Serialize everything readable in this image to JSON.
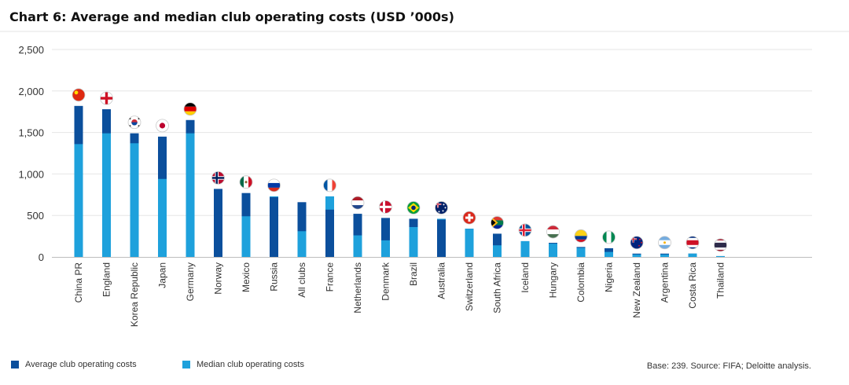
{
  "chart_data": {
    "type": "bar",
    "title": "Chart 6: Average and median club operating costs (USD ’000s)",
    "xlabel": "",
    "ylabel": "",
    "ylim": [
      0,
      2500
    ],
    "yticks": [
      0,
      500,
      1000,
      1500,
      2000,
      2500
    ],
    "ytick_labels": [
      "0",
      "500",
      "1,000",
      "1,500",
      "2,000",
      "2,500"
    ],
    "grid": true,
    "legend": "bottom-left",
    "categories": [
      "China PR",
      "England",
      "Korea Republic",
      "Japan",
      "Germany",
      "Norway",
      "Mexico",
      "Russia",
      "All clubs",
      "France",
      "Netherlands",
      "Denmark",
      "Brazil",
      "Australia",
      "Switzerland",
      "South Africa",
      "Iceland",
      "Hungary",
      "Colombia",
      "Nigeria",
      "New Zealand",
      "Argentina",
      "Costa Rica",
      "Thailand"
    ],
    "flag_icons": [
      "china-flag-icon",
      "england-flag-icon",
      "korea-republic-flag-icon",
      "japan-flag-icon",
      "germany-flag-icon",
      "norway-flag-icon",
      "mexico-flag-icon",
      "russia-flag-icon",
      null,
      "france-flag-icon",
      "netherlands-flag-icon",
      "denmark-flag-icon",
      "brazil-flag-icon",
      "australia-flag-icon",
      "switzerland-flag-icon",
      "south-africa-flag-icon",
      "iceland-flag-icon",
      "hungary-flag-icon",
      "colombia-flag-icon",
      "nigeria-flag-icon",
      "new-zealand-flag-icon",
      "argentina-flag-icon",
      "costa-rica-flag-icon",
      "thailand-flag-icon"
    ],
    "series": [
      {
        "name": "Average club operating costs",
        "color": "#0b4f9c",
        "values": [
          1820,
          1780,
          1490,
          1450,
          1650,
          820,
          770,
          720,
          660,
          570,
          520,
          470,
          460,
          450,
          340,
          280,
          190,
          170,
          120,
          105,
          40,
          40,
          40,
          10
        ]
      },
      {
        "name": "Median club operating costs",
        "color": "#1ea1dc",
        "values": [
          1360,
          1490,
          1370,
          940,
          1490,
          0,
          490,
          730,
          310,
          730,
          260,
          200,
          360,
          460,
          340,
          140,
          190,
          160,
          110,
          60,
          30,
          30,
          40,
          10
        ]
      }
    ]
  },
  "legend": {
    "average_label": "Average club operating costs",
    "median_label": "Median club operating costs"
  },
  "source_note": "Base: 239. Source: FIFA; Deloitte analysis."
}
